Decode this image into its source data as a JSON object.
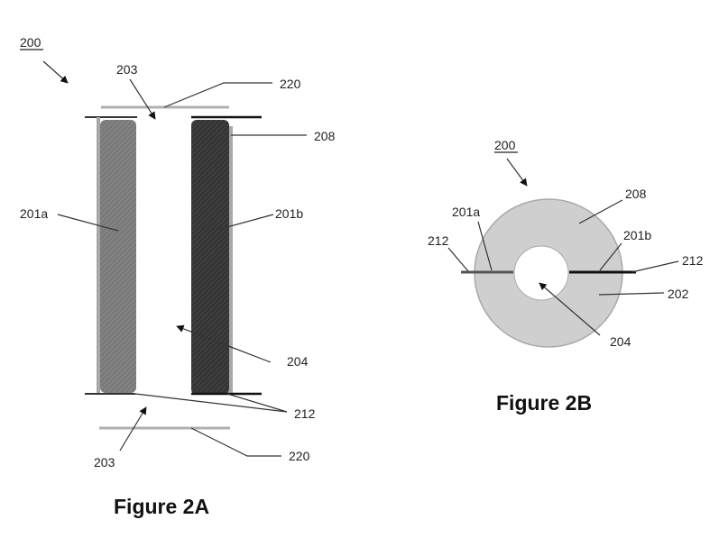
{
  "figure_a": {
    "caption": "Figure 2A",
    "ref_200": "200",
    "ref_203_top": "203",
    "ref_220_top": "220",
    "ref_208": "208",
    "ref_201a": "201a",
    "ref_201b": "201b",
    "ref_204": "204",
    "ref_212": "212",
    "ref_203_bottom": "203",
    "ref_220_bottom": "220"
  },
  "figure_b": {
    "caption": "Figure 2B",
    "ref_200": "200",
    "ref_208": "208",
    "ref_201a": "201a",
    "ref_201b": "201b",
    "ref_212_left": "212",
    "ref_212_right": "212",
    "ref_202": "202",
    "ref_204": "204"
  },
  "colors": {
    "electrode_a": "#7a7a7a",
    "electrode_b": "#3c3c3c",
    "ring": "#cfcfcf",
    "plate": "#b0b0b0"
  }
}
